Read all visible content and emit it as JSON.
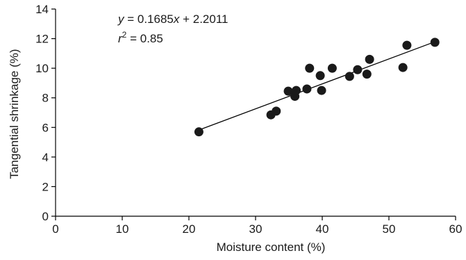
{
  "chart_data": {
    "type": "scatter",
    "xlabel": "Moisture content  (%)",
    "ylabel": "Tangential shrinkage (%)",
    "xlim": [
      0,
      60
    ],
    "ylim": [
      0,
      14
    ],
    "xticks": [
      0,
      10,
      20,
      30,
      40,
      50,
      60
    ],
    "yticks": [
      0,
      2,
      4,
      6,
      8,
      10,
      12,
      14
    ],
    "grid": false,
    "points": [
      {
        "x": 21.5,
        "y": 5.7
      },
      {
        "x": 32.3,
        "y": 6.85
      },
      {
        "x": 33.1,
        "y": 7.1
      },
      {
        "x": 34.9,
        "y": 8.45
      },
      {
        "x": 35.9,
        "y": 8.1
      },
      {
        "x": 36.1,
        "y": 8.5
      },
      {
        "x": 37.7,
        "y": 8.6
      },
      {
        "x": 38.1,
        "y": 10.0
      },
      {
        "x": 39.7,
        "y": 9.5
      },
      {
        "x": 39.9,
        "y": 8.5
      },
      {
        "x": 41.5,
        "y": 10.0
      },
      {
        "x": 44.1,
        "y": 9.45
      },
      {
        "x": 45.3,
        "y": 9.9
      },
      {
        "x": 46.7,
        "y": 9.6
      },
      {
        "x": 47.1,
        "y": 10.6
      },
      {
        "x": 52.1,
        "y": 10.05
      },
      {
        "x": 52.7,
        "y": 11.55
      },
      {
        "x": 56.9,
        "y": 11.75
      }
    ],
    "regression": {
      "slope": 0.1685,
      "intercept": 2.2011,
      "x_range": [
        21.5,
        56.9
      ]
    },
    "annotation": {
      "equation": {
        "y_var": "y",
        "rest": " = 0.1685",
        "x_var": "x",
        "tail": " + 2.2011"
      },
      "r2": {
        "r_var": "r",
        "sup": "2",
        "rest": " = 0.85"
      }
    },
    "colors": {
      "marker": "#1a1a1a",
      "line": "#000000",
      "axis": "#000000"
    }
  }
}
